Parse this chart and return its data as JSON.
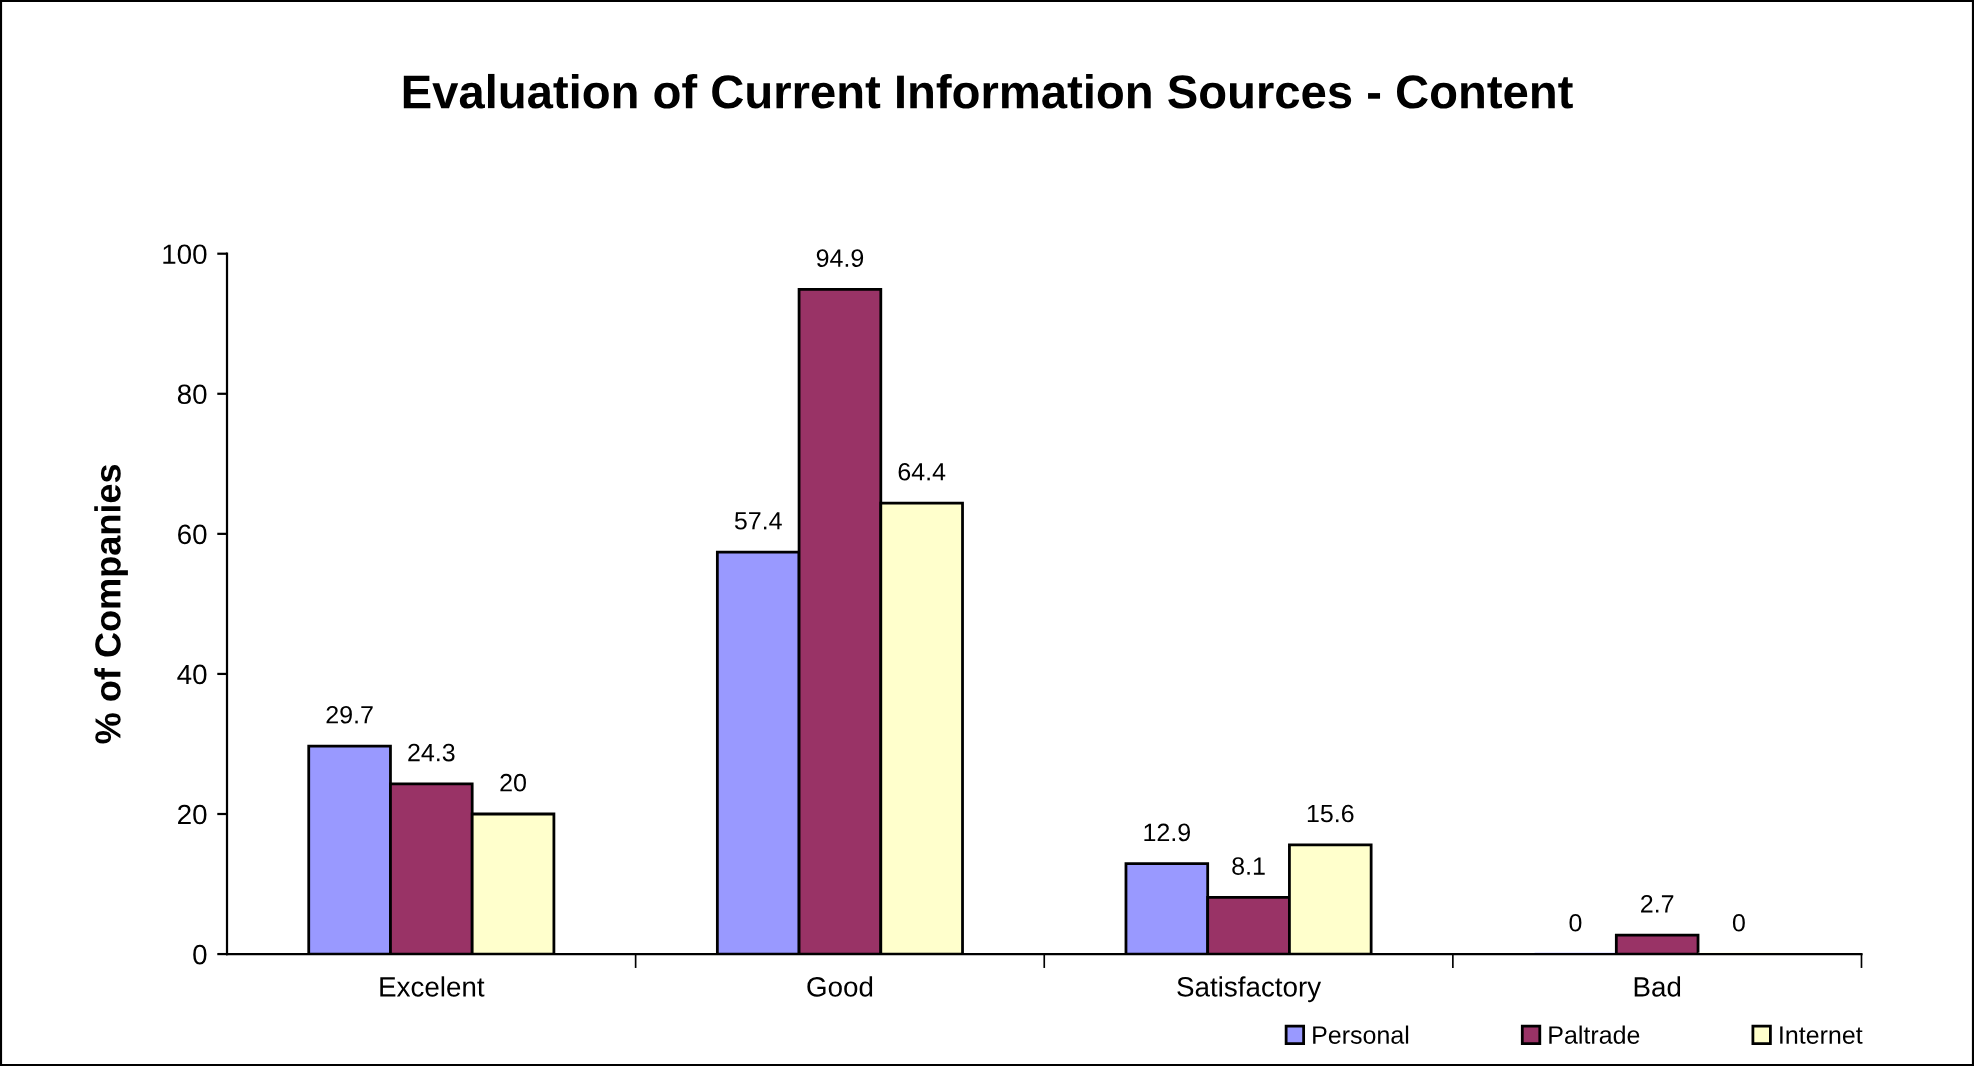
{
  "chart_data": {
    "type": "bar",
    "title": "Evaluation of Current Information Sources - Content",
    "ylabel": "% of Companies",
    "categories": [
      "Excelent",
      "Good",
      "Satisfactory",
      "Bad"
    ],
    "series": [
      {
        "name": "Personal",
        "color": "#9999ff",
        "values": [
          29.7,
          57.4,
          12.9,
          0
        ]
      },
      {
        "name": "Paltrade",
        "color": "#993366",
        "values": [
          24.3,
          94.9,
          8.1,
          2.7
        ]
      },
      {
        "name": "Internet",
        "color": "#ffffcc",
        "values": [
          20,
          64.4,
          15.6,
          0
        ]
      }
    ],
    "ylim": [
      0,
      100
    ],
    "yticks": [
      0,
      20,
      40,
      60,
      80,
      100
    ],
    "data_labels": true,
    "grid": false,
    "legend": "bottom right"
  }
}
